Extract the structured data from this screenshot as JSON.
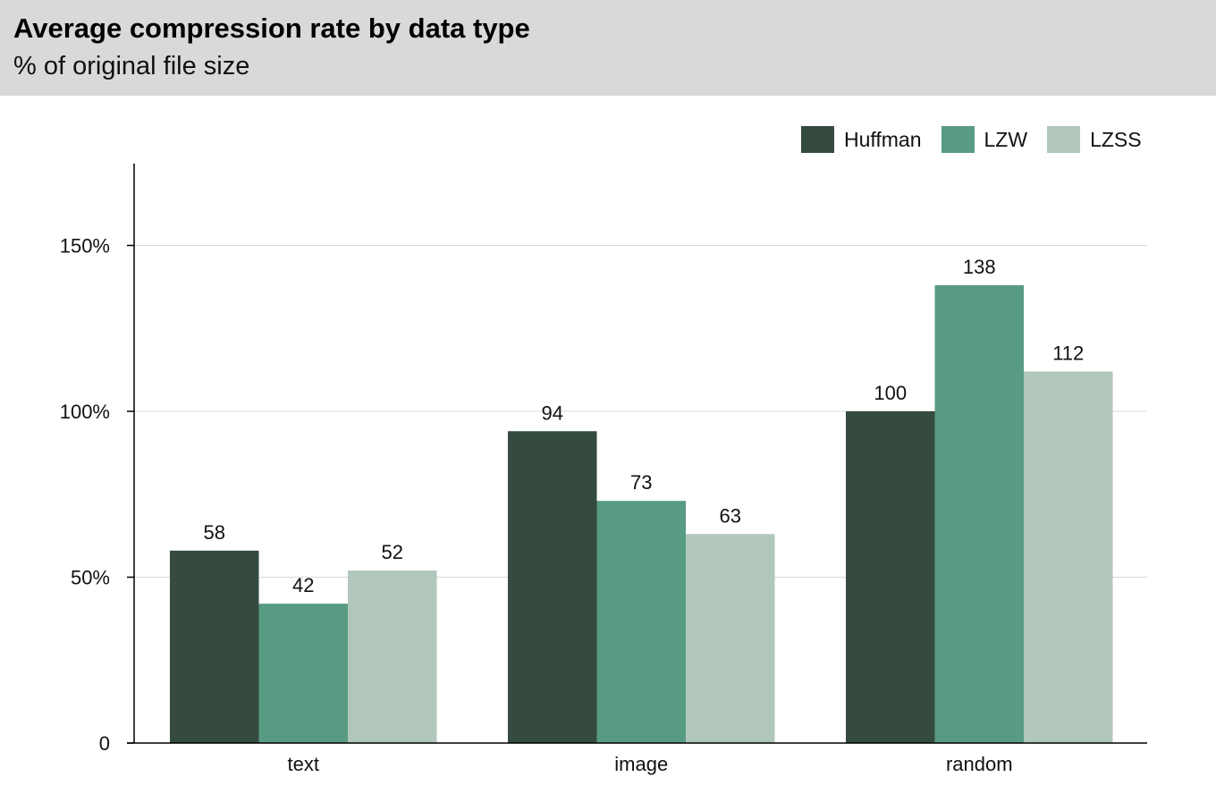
{
  "chart_data": {
    "type": "bar",
    "title": "Average compression rate by data type",
    "subtitle": "% of original file size",
    "categories": [
      "text",
      "image",
      "random"
    ],
    "series": [
      {
        "name": "Huffman",
        "values": [
          58,
          94,
          100
        ],
        "color": "#354b3f"
      },
      {
        "name": "LZW",
        "values": [
          42,
          73,
          138
        ],
        "color": "#589b83"
      },
      {
        "name": "LZSS",
        "values": [
          52,
          63,
          112
        ],
        "color": "#b1c7bb"
      }
    ],
    "y_ticks": [
      {
        "value": 0,
        "label": "0"
      },
      {
        "value": 50,
        "label": "50%"
      },
      {
        "value": 100,
        "label": "100%"
      },
      {
        "value": 150,
        "label": "150%"
      }
    ],
    "ylim": [
      0,
      175
    ],
    "grid": true,
    "legend_position": "top-right"
  }
}
